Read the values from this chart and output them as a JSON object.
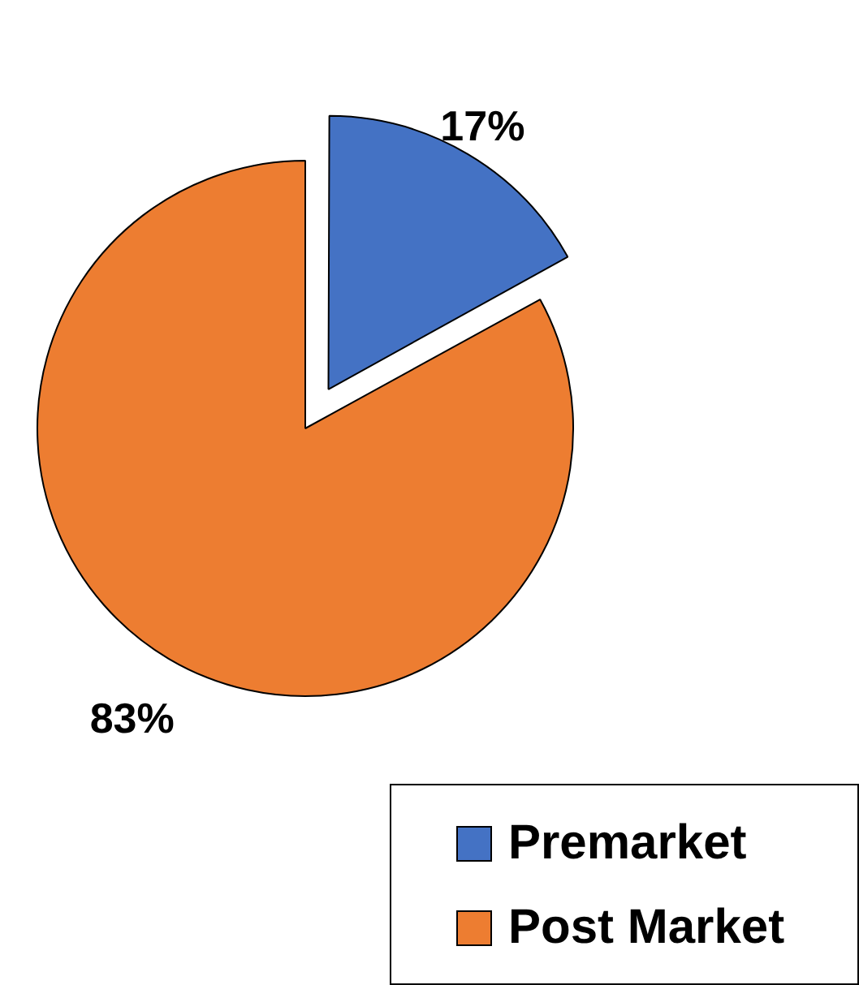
{
  "chart_data": {
    "type": "pie",
    "categories": [
      "Premarket",
      "Post Market"
    ],
    "values": [
      17,
      83
    ],
    "colors": [
      "#4472c4",
      "#ed7d31"
    ],
    "value_labels": [
      "17%",
      "83%"
    ],
    "legend": "bottom right"
  }
}
